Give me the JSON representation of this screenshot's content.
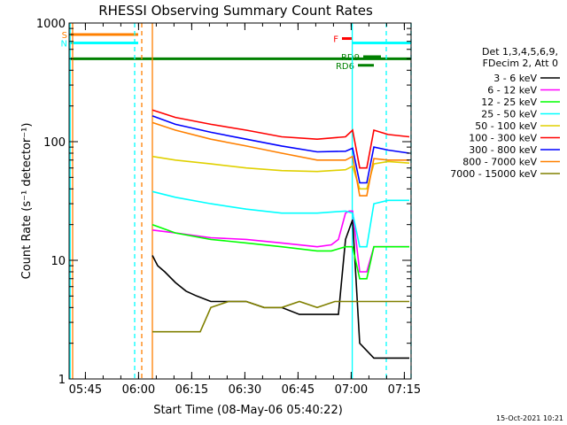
{
  "chart_data": {
    "type": "line",
    "title": "RHESSI Observing Summary Count Rates",
    "xlabel": "Start Time (08-May-06 05:40:22)",
    "ylabel": "Count Rate (s⁻¹ detector⁻¹)",
    "y_scale": "log",
    "ylim": [
      1,
      1000
    ],
    "xlim_minutes": [
      0,
      96.5
    ],
    "x_ticks": [
      {
        "label": "05:45",
        "minute": 4.6
      },
      {
        "label": "06:00",
        "minute": 19.6
      },
      {
        "label": "06:15",
        "minute": 34.6
      },
      {
        "label": "06:30",
        "minute": 49.6
      },
      {
        "label": "06:45",
        "minute": 64.6
      },
      {
        "label": "07:00",
        "minute": 79.6
      },
      {
        "label": "07:15",
        "minute": 94.6
      }
    ],
    "y_ticks": [
      {
        "label": "1",
        "value": 1
      },
      {
        "label": "10",
        "value": 10
      },
      {
        "label": "100",
        "value": 100
      },
      {
        "label": "1000",
        "value": 1000
      }
    ],
    "legend_header": [
      "Det 1,3,4,5,6,9,",
      "FDecim 2, Att 0"
    ],
    "legend_position": "right",
    "series": [
      {
        "name": "3 - 6 keV",
        "color": "#000000",
        "x": [
          23.5,
          25,
          27,
          30,
          33,
          36,
          40,
          45,
          50,
          55,
          60,
          65,
          70,
          74,
          76,
          78,
          80,
          82,
          86,
          90,
          94,
          96
        ],
        "y": [
          11,
          9,
          8,
          6.5,
          5.5,
          5,
          4.5,
          4.5,
          4.5,
          4,
          4,
          3.5,
          3.5,
          3.5,
          3.5,
          15,
          22,
          2,
          1.5,
          1.5,
          1.5,
          1.5
        ]
      },
      {
        "name": "6 - 12 keV",
        "color": "#ff00ff",
        "x": [
          23.5,
          30,
          40,
          50,
          60,
          70,
          74,
          76,
          78,
          79,
          80,
          82,
          84,
          86,
          90,
          96
        ],
        "y": [
          18,
          17,
          15.5,
          15,
          14,
          13,
          13.5,
          15,
          25,
          26,
          26,
          8,
          8,
          13,
          13,
          13
        ]
      },
      {
        "name": "12 - 25 keV",
        "color": "#00ff00",
        "x": [
          23.5,
          30,
          40,
          50,
          60,
          70,
          74,
          78,
          80,
          82,
          84,
          86,
          90,
          96
        ],
        "y": [
          20,
          17,
          15,
          14,
          13,
          12,
          12,
          13,
          13,
          7,
          7,
          13,
          13,
          13
        ]
      },
      {
        "name": "25 - 50 keV",
        "color": "#00ffff",
        "x": [
          23.5,
          30,
          40,
          50,
          60,
          70,
          78,
          80,
          82,
          84,
          86,
          90,
          96
        ],
        "y": [
          38,
          34,
          30,
          27,
          25,
          25,
          26,
          25,
          13,
          13,
          30,
          32,
          32
        ]
      },
      {
        "name": "50 - 100 keV",
        "color": "#e0d000",
        "x": [
          23.5,
          30,
          40,
          50,
          60,
          70,
          78,
          80,
          82,
          84,
          86,
          90,
          96
        ],
        "y": [
          75,
          70,
          65,
          60,
          57,
          56,
          58,
          62,
          40,
          40,
          65,
          68,
          66
        ]
      },
      {
        "name": "100 - 300 keV",
        "color": "#ff0000",
        "x": [
          23.5,
          30,
          40,
          50,
          60,
          70,
          78,
          80,
          82,
          84,
          86,
          90,
          96
        ],
        "y": [
          185,
          160,
          140,
          125,
          110,
          105,
          110,
          125,
          60,
          60,
          125,
          115,
          110
        ]
      },
      {
        "name": "300 - 800 keV",
        "color": "#0000ff",
        "x": [
          23.5,
          30,
          40,
          50,
          60,
          70,
          78,
          80,
          82,
          84,
          86,
          90,
          96
        ],
        "y": [
          165,
          140,
          120,
          105,
          92,
          82,
          83,
          88,
          45,
          45,
          90,
          85,
          80
        ]
      },
      {
        "name": "800 - 7000 keV",
        "color": "#ff8000",
        "x": [
          23.5,
          30,
          40,
          50,
          60,
          70,
          78,
          80,
          82,
          84,
          86,
          90,
          96
        ],
        "y": [
          145,
          125,
          105,
          92,
          80,
          70,
          70,
          75,
          35,
          35,
          72,
          70,
          70
        ]
      },
      {
        "name": "7000 - 15000 keV",
        "color": "#808000",
        "x": [
          23.5,
          30,
          37,
          40,
          45,
          50,
          55,
          60,
          65,
          70,
          75,
          80,
          85,
          90,
          96
        ],
        "y": [
          2.5,
          2.5,
          2.5,
          4,
          4.5,
          4.5,
          4,
          4,
          4.5,
          4,
          4.5,
          4.5,
          4.5,
          4.5,
          4.5
        ]
      }
    ],
    "status_bars": [
      {
        "label": "S",
        "color": "#ff8000",
        "start": 0,
        "end": 19.5,
        "value": 800
      },
      {
        "label": "N",
        "color": "#00ffff",
        "start": 0,
        "end": 19.5,
        "value": 680
      },
      {
        "label": "",
        "color": "#00ffff",
        "start": 80,
        "end": 96.5,
        "value": 680
      },
      {
        "label": "",
        "color": "#008000",
        "start": 0,
        "end": 96.5,
        "value": 500
      },
      {
        "label": "F",
        "color": "#ff0000",
        "start": 77,
        "end": 80,
        "value": 740
      },
      {
        "label": "RD9",
        "color": "#008000",
        "start": 83,
        "end": 88,
        "value": 520
      },
      {
        "label": "RD6",
        "color": "#008000",
        "start": 81.5,
        "end": 86,
        "value": 440
      }
    ],
    "vertical_markers": [
      {
        "minute": 1.0,
        "color": "#ff8000",
        "style": "solid"
      },
      {
        "minute": 0.3,
        "color": "#00ffff",
        "style": "solid"
      },
      {
        "minute": 18.5,
        "color": "#00ffff",
        "style": "dashed"
      },
      {
        "minute": 20.5,
        "color": "#ff8000",
        "style": "dashed"
      },
      {
        "minute": 23.5,
        "color": "#ff8000",
        "style": "solid"
      },
      {
        "minute": 79.9,
        "color": "#00ffff",
        "style": "solid"
      },
      {
        "minute": 89.5,
        "color": "#00ffff",
        "style": "dashed"
      },
      {
        "minute": 96.5,
        "color": "#00ffff",
        "style": "dashed"
      }
    ]
  },
  "footer": {
    "timestamp": "15-Oct-2021 10:21"
  }
}
